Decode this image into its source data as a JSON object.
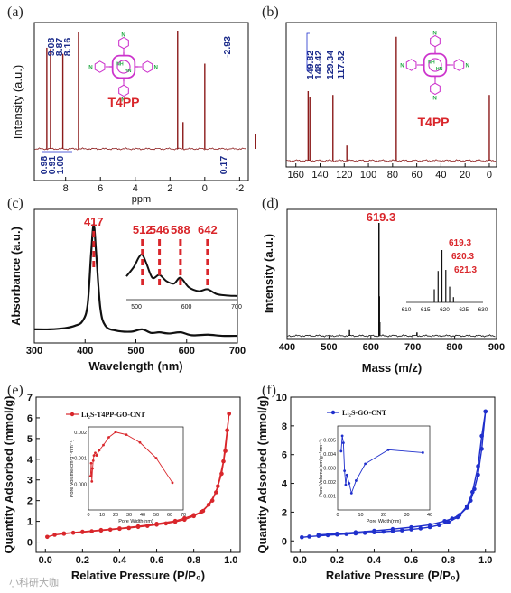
{
  "watermark": "小科研大咖",
  "colors": {
    "nmr": "#8b1a1a",
    "red": "#d9262b",
    "blue": "#1f2fcc",
    "black": "#111111",
    "magenta": "#cc33cc",
    "green": "#22aa44"
  },
  "molecule": {
    "label": "T4PP",
    "n_label": "N",
    "nh_label": "NH",
    "hn_label": "HN"
  },
  "chart_data": [
    {
      "id": "a",
      "panel_label": "(a)",
      "type": "line",
      "xlabel": "ppm",
      "ylabel": "Intensity (a.u.)",
      "xlim": [
        9.8,
        -2.5
      ],
      "x_ticks": [
        8,
        6,
        4,
        2,
        0,
        -2
      ],
      "peaks": [
        {
          "x": 9.08,
          "h": 0.83
        },
        {
          "x": 8.87,
          "h": 0.82
        },
        {
          "x": 8.16,
          "h": 0.78
        },
        {
          "x": 7.26,
          "h": 0.96
        },
        {
          "x": 1.56,
          "h": 0.97
        },
        {
          "x": 1.25,
          "h": 0.22
        },
        {
          "x": 0.0,
          "h": 0.7
        },
        {
          "x": -2.93,
          "h": 0.12
        }
      ],
      "shift_labels": [
        "9.08",
        "8.87",
        "8.16",
        "-2.93"
      ],
      "integrals": [
        "0.98",
        "0.91",
        "1.00",
        "0.17"
      ]
    },
    {
      "id": "b",
      "panel_label": "(b)",
      "type": "line",
      "xlabel": "",
      "ylabel": "",
      "xlim": [
        168,
        -6
      ],
      "x_ticks": [
        160,
        140,
        120,
        100,
        80,
        60,
        40,
        20,
        0
      ],
      "peaks": [
        {
          "x": 149.82,
          "h": 0.55
        },
        {
          "x": 148.42,
          "h": 0.5
        },
        {
          "x": 129.34,
          "h": 0.52
        },
        {
          "x": 117.82,
          "h": 0.12
        },
        {
          "x": 77.0,
          "h": 0.98
        },
        {
          "x": 0.0,
          "h": 0.52
        }
      ],
      "shift_labels": [
        "149.82",
        "148.42",
        "129.34",
        "117.82"
      ]
    },
    {
      "id": "c",
      "panel_label": "(c)",
      "type": "line",
      "xlabel": "Wavelength (nm)",
      "ylabel": "Absorbance (a.u.)",
      "xlim": [
        300,
        700
      ],
      "x_ticks": [
        300,
        400,
        500,
        600,
        700
      ],
      "x": [
        300,
        330,
        360,
        380,
        395,
        405,
        412,
        417,
        422,
        430,
        440,
        460,
        490,
        512,
        530,
        546,
        565,
        588,
        610,
        642,
        670,
        700
      ],
      "y": [
        0.07,
        0.07,
        0.08,
        0.1,
        0.14,
        0.28,
        0.72,
        0.96,
        0.7,
        0.25,
        0.1,
        0.06,
        0.05,
        0.07,
        0.04,
        0.045,
        0.035,
        0.045,
        0.02,
        0.025,
        0.015,
        0.015
      ],
      "peak_labels": [
        "417",
        "512",
        "546",
        "588",
        "642"
      ],
      "inset": {
        "xlim": [
          480,
          700
        ],
        "x_ticks": [
          500,
          600,
          700
        ],
        "x": [
          480,
          495,
          505,
          512,
          520,
          532,
          546,
          560,
          575,
          588,
          605,
          625,
          642,
          660,
          680,
          700
        ],
        "y": [
          0.45,
          0.65,
          0.85,
          0.9,
          0.72,
          0.42,
          0.48,
          0.35,
          0.3,
          0.42,
          0.22,
          0.14,
          0.18,
          0.08,
          0.05,
          0.04
        ]
      }
    },
    {
      "id": "d",
      "panel_label": "(d)",
      "type": "line",
      "xlabel": "Mass (m/z)",
      "ylabel": "Intensity (a.u.)",
      "xlim": [
        400,
        900
      ],
      "x_ticks": [
        400,
        500,
        600,
        700,
        800,
        900
      ],
      "peaks": [
        {
          "x": 549,
          "h": 0.05
        },
        {
          "x": 619.3,
          "h": 1.0
        },
        {
          "x": 620.3,
          "h": 0.35
        },
        {
          "x": 621.3,
          "h": 0.12
        },
        {
          "x": 710,
          "h": 0.03
        }
      ],
      "peak_labels": [
        "619.3"
      ],
      "inset": {
        "xlim": [
          610,
          630
        ],
        "x_ticks": [
          610,
          615,
          620,
          625,
          630
        ],
        "peaks": [
          {
            "x": 617.3,
            "h": 0.25
          },
          {
            "x": 618.3,
            "h": 0.6
          },
          {
            "x": 619.3,
            "h": 1.0
          },
          {
            "x": 620.3,
            "h": 0.62
          },
          {
            "x": 621.3,
            "h": 0.3
          },
          {
            "x": 622.3,
            "h": 0.1
          }
        ],
        "peak_labels": [
          "619.3",
          "620.3",
          "621.3"
        ]
      }
    },
    {
      "id": "e",
      "panel_label": "(e)",
      "type": "scatter",
      "xlabel": "Relative Pressure (P/P₀)",
      "ylabel": "Quantity Adsorbed (mmol/g)",
      "xlim": [
        -0.05,
        1.05
      ],
      "ylim": [
        -0.5,
        7.0
      ],
      "x_ticks": [
        "0.0",
        "0.2",
        "0.4",
        "0.6",
        "0.8",
        "1.0"
      ],
      "x_tick_vals": [
        0,
        0.2,
        0.4,
        0.6,
        0.8,
        1.0
      ],
      "y_ticks": [
        0,
        1,
        2,
        3,
        4,
        5,
        6,
        7
      ],
      "legend": "Li₂S-T4PP-GO-CNT",
      "adsorption": {
        "x": [
          0.01,
          0.05,
          0.1,
          0.15,
          0.2,
          0.25,
          0.3,
          0.35,
          0.4,
          0.45,
          0.5,
          0.55,
          0.6,
          0.65,
          0.7,
          0.75,
          0.8,
          0.85,
          0.9,
          0.93,
          0.96,
          0.98,
          0.99
        ],
        "y": [
          0.25,
          0.35,
          0.4,
          0.45,
          0.48,
          0.52,
          0.56,
          0.6,
          0.64,
          0.68,
          0.73,
          0.78,
          0.84,
          0.9,
          0.98,
          1.08,
          1.25,
          1.5,
          2.0,
          2.7,
          3.9,
          5.4,
          6.2
        ]
      },
      "desorption": {
        "x": [
          0.99,
          0.97,
          0.95,
          0.92,
          0.88,
          0.84,
          0.8,
          0.75,
          0.7,
          0.6,
          0.5,
          0.4,
          0.3,
          0.2,
          0.1
        ],
        "y": [
          6.2,
          4.4,
          3.3,
          2.4,
          1.8,
          1.45,
          1.3,
          1.15,
          1.02,
          0.88,
          0.76,
          0.66,
          0.58,
          0.5,
          0.42
        ]
      },
      "inset": {
        "xlabel": "Pore Width(nm)",
        "ylabel": "Pore Volume(cm³g⁻¹nm⁻¹)",
        "xlim": [
          0,
          70
        ],
        "ylim": [
          -0.001,
          0.0022
        ],
        "x_ticks": [
          0,
          10,
          20,
          30,
          40,
          50,
          60,
          70
        ],
        "y_ticks": [
          "0.000",
          "0.001",
          "0.002"
        ],
        "y_tick_vals": [
          0,
          0.001,
          0.002
        ],
        "x": [
          1.5,
          2,
          2.5,
          3,
          3.5,
          4,
          5,
          6,
          8,
          11,
          15,
          20,
          28,
          38,
          50,
          62
        ],
        "y": [
          0.0003,
          0.0008,
          0.0001,
          0.0006,
          0.0009,
          0.0011,
          0.0012,
          0.0011,
          0.0013,
          0.0015,
          0.0018,
          0.002,
          0.0019,
          0.0016,
          0.001,
          5e-05
        ]
      }
    },
    {
      "id": "f",
      "panel_label": "(f)",
      "type": "scatter",
      "xlabel": "Relative Pressure (P/P₀)",
      "ylabel": "Quantity Adsorbed (mmol/g)",
      "xlim": [
        -0.05,
        1.05
      ],
      "ylim": [
        -0.8,
        10.0
      ],
      "x_ticks": [
        "0.0",
        "0.2",
        "0.4",
        "0.6",
        "0.8",
        "1.0"
      ],
      "x_tick_vals": [
        0,
        0.2,
        0.4,
        0.6,
        0.8,
        1.0
      ],
      "y_ticks": [
        0,
        2,
        4,
        6,
        8,
        10
      ],
      "legend": "Li₂S-GO-CNT",
      "adsorption": {
        "x": [
          0.01,
          0.05,
          0.1,
          0.15,
          0.2,
          0.25,
          0.3,
          0.35,
          0.4,
          0.45,
          0.5,
          0.55,
          0.6,
          0.65,
          0.7,
          0.75,
          0.8,
          0.85,
          0.9,
          0.93,
          0.96,
          0.98,
          1.0
        ],
        "y": [
          0.25,
          0.3,
          0.35,
          0.4,
          0.44,
          0.48,
          0.52,
          0.56,
          0.6,
          0.64,
          0.68,
          0.73,
          0.8,
          0.87,
          0.96,
          1.1,
          1.3,
          1.65,
          2.4,
          3.4,
          5.2,
          7.3,
          9.0
        ]
      },
      "desorption": {
        "x": [
          1.0,
          0.98,
          0.96,
          0.94,
          0.92,
          0.9,
          0.86,
          0.82,
          0.78,
          0.7,
          0.6,
          0.5,
          0.4,
          0.3,
          0.2,
          0.1
        ],
        "y": [
          9.0,
          6.4,
          4.6,
          3.6,
          2.8,
          2.3,
          1.8,
          1.55,
          1.38,
          1.12,
          0.95,
          0.82,
          0.7,
          0.6,
          0.5,
          0.42
        ]
      },
      "inset": {
        "xlabel": "Pore Width(nm)",
        "ylabel": "Pore Volume(cm³g⁻¹nm⁻¹)",
        "xlim": [
          0,
          40
        ],
        "ylim": [
          0.0,
          0.006
        ],
        "x_ticks": [
          0,
          10,
          20,
          30,
          40
        ],
        "y_ticks": [
          "0.001",
          "0.002",
          "0.003",
          "0.004",
          "0.005"
        ],
        "y_tick_vals": [
          0.001,
          0.002,
          0.003,
          0.004,
          0.005
        ],
        "x": [
          1.5,
          2,
          2.5,
          3,
          3.5,
          4,
          5,
          6,
          8,
          12,
          22,
          37
        ],
        "y": [
          0.0042,
          0.0053,
          0.0048,
          0.0028,
          0.0018,
          0.0025,
          0.0019,
          0.0012,
          0.0021,
          0.0033,
          0.0043,
          0.0041
        ]
      }
    }
  ]
}
